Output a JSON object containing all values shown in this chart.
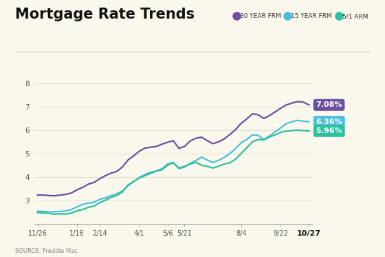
{
  "title": "Mortgage Rate Trends",
  "source": "SOURCE: Freddie Mac",
  "background_color": "#faf8ec",
  "title_fontsize": 15,
  "title_fontweight": "bold",
  "ylabel_range": [
    2,
    8.6
  ],
  "yticks": [
    3,
    4,
    5,
    6,
    7,
    8
  ],
  "xtick_labels": [
    "11/26",
    "1/16",
    "2/14",
    "4/1",
    "5/6",
    "5/21",
    "8/4",
    "9/22",
    "10/27"
  ],
  "xtick_positions": [
    0,
    7,
    11,
    18,
    23,
    26,
    36,
    43,
    48
  ],
  "series": {
    "30yr": {
      "color": "#6b4fa0",
      "label": "30 YEAR FRM",
      "end_value": "7.08%",
      "badge_color": "#6b4fa0"
    },
    "15yr": {
      "color": "#4bbfdb",
      "label": "15 YEAR FRM",
      "end_value": "6.36%",
      "badge_color": "#4bbfdb"
    },
    "arm": {
      "color": "#2dbf9e",
      "label": "5/1 ARM",
      "end_value": "5.96%",
      "badge_color": "#2dbf9e"
    }
  },
  "thirty_year": [
    3.22,
    3.22,
    3.2,
    3.19,
    3.22,
    3.25,
    3.31,
    3.45,
    3.55,
    3.69,
    3.76,
    3.92,
    4.05,
    4.16,
    4.23,
    4.42,
    4.72,
    4.9,
    5.1,
    5.23,
    5.27,
    5.3,
    5.4,
    5.48,
    5.55,
    5.22,
    5.3,
    5.54,
    5.65,
    5.7,
    5.55,
    5.42,
    5.5,
    5.62,
    5.81,
    6.02,
    6.29,
    6.48,
    6.7,
    6.66,
    6.5,
    6.62,
    6.78,
    6.94,
    7.08,
    7.16,
    7.22,
    7.2,
    7.08
  ],
  "fifteen_year": [
    2.53,
    2.52,
    2.51,
    2.5,
    2.52,
    2.54,
    2.6,
    2.72,
    2.82,
    2.88,
    2.91,
    3.04,
    3.1,
    3.2,
    3.27,
    3.4,
    3.62,
    3.79,
    3.98,
    4.1,
    4.2,
    4.25,
    4.35,
    4.55,
    4.62,
    4.35,
    4.42,
    4.58,
    4.7,
    4.85,
    4.72,
    4.62,
    4.7,
    4.83,
    5.0,
    5.21,
    5.46,
    5.6,
    5.8,
    5.78,
    5.6,
    5.75,
    5.92,
    6.1,
    6.28,
    6.36,
    6.42,
    6.38,
    6.36
  ],
  "arm_5_1": [
    2.47,
    2.45,
    2.44,
    2.4,
    2.42,
    2.41,
    2.45,
    2.55,
    2.6,
    2.7,
    2.75,
    2.9,
    3.0,
    3.12,
    3.2,
    3.35,
    3.65,
    3.8,
    3.95,
    4.05,
    4.15,
    4.25,
    4.3,
    4.5,
    4.6,
    4.38,
    4.45,
    4.55,
    4.62,
    4.5,
    4.45,
    4.38,
    4.45,
    4.55,
    4.6,
    4.75,
    5.0,
    5.25,
    5.5,
    5.6,
    5.58,
    5.7,
    5.8,
    5.9,
    5.96,
    5.98,
    6.0,
    5.98,
    5.96
  ]
}
